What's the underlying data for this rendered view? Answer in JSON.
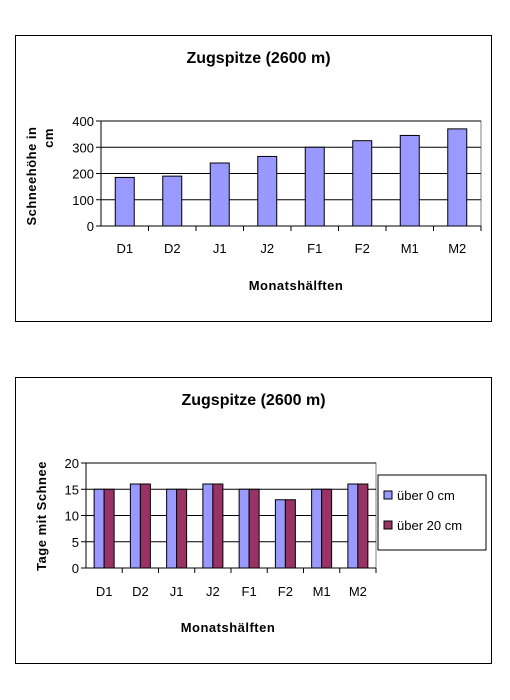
{
  "chart_data": [
    {
      "type": "bar",
      "title": "Zugspitze (2600 m)",
      "xlabel": "Monatshälften",
      "ylabel_lines": [
        "Schneehöhe in",
        "cm"
      ],
      "categories": [
        "D1",
        "D2",
        "J1",
        "J2",
        "F1",
        "F2",
        "M1",
        "M2"
      ],
      "series": [
        {
          "values": [
            185,
            190,
            240,
            265,
            300,
            325,
            345,
            370
          ],
          "color": "#9999ff"
        }
      ],
      "ylim": [
        0,
        400
      ],
      "yticks": [
        0,
        100,
        200,
        300,
        400
      ],
      "grid": true,
      "legend": null
    },
    {
      "type": "bar",
      "title": "Zugspitze (2600 m)",
      "xlabel": "Monatshälften",
      "ylabel_lines": [
        "Tage mit Schnee"
      ],
      "categories": [
        "D1",
        "D2",
        "J1",
        "J2",
        "F1",
        "F2",
        "M1",
        "M2"
      ],
      "series": [
        {
          "name": "über 0 cm",
          "values": [
            15,
            16,
            15,
            16,
            15,
            13,
            15,
            16
          ],
          "color": "#9999ff"
        },
        {
          "name": "über 20 cm",
          "values": [
            15,
            16,
            15,
            16,
            15,
            13,
            15,
            16
          ],
          "color": "#993366"
        }
      ],
      "ylim": [
        0,
        20
      ],
      "yticks": [
        0,
        5,
        10,
        15,
        20
      ],
      "grid": true,
      "legend": "right"
    }
  ]
}
